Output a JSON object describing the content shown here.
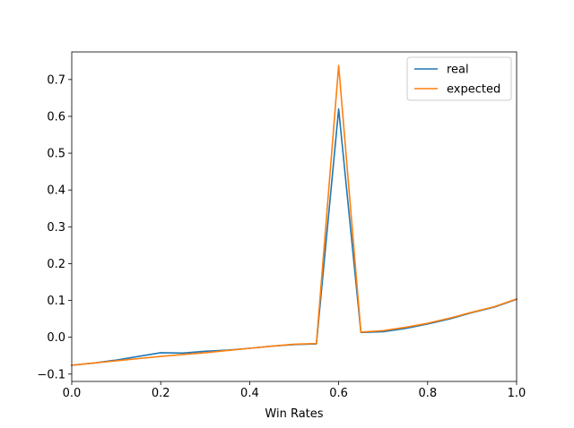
{
  "chart_data": {
    "type": "line",
    "title": "",
    "xlabel": "Win Rates",
    "ylabel": "",
    "xlim": [
      0.0,
      1.0
    ],
    "ylim": [
      -0.12,
      0.775
    ],
    "xticks": [
      0.0,
      0.2,
      0.4,
      0.6,
      0.8,
      1.0
    ],
    "xtick_labels": [
      "0.0",
      "0.2",
      "0.4",
      "0.6",
      "0.8",
      "1.0"
    ],
    "yticks": [
      -0.1,
      0.0,
      0.1,
      0.2,
      0.3,
      0.4,
      0.5,
      0.6,
      0.7
    ],
    "ytick_labels": [
      "−0.1",
      "0.0",
      "0.1",
      "0.2",
      "0.3",
      "0.4",
      "0.5",
      "0.6",
      "0.7"
    ],
    "grid": false,
    "legend": {
      "position": "top-right"
    },
    "x": [
      0.0,
      0.05,
      0.1,
      0.15,
      0.2,
      0.25,
      0.3,
      0.35,
      0.4,
      0.45,
      0.5,
      0.55,
      0.6,
      0.65,
      0.7,
      0.75,
      0.8,
      0.85,
      0.9,
      0.95,
      1.0
    ],
    "series": [
      {
        "name": "real",
        "color": "#1f77b4",
        "values": [
          -0.076,
          -0.07,
          -0.062,
          -0.052,
          -0.042,
          -0.043,
          -0.038,
          -0.035,
          -0.03,
          -0.024,
          -0.02,
          -0.018,
          0.62,
          0.013,
          0.015,
          0.024,
          0.036,
          0.05,
          0.067,
          0.082,
          0.103
        ]
      },
      {
        "name": "expected",
        "color": "#ff7f0e",
        "values": [
          -0.076,
          -0.07,
          -0.064,
          -0.058,
          -0.052,
          -0.047,
          -0.042,
          -0.036,
          -0.03,
          -0.024,
          -0.019,
          -0.017,
          0.738,
          0.014,
          0.018,
          0.027,
          0.038,
          0.052,
          0.068,
          0.083,
          0.104
        ]
      }
    ]
  }
}
